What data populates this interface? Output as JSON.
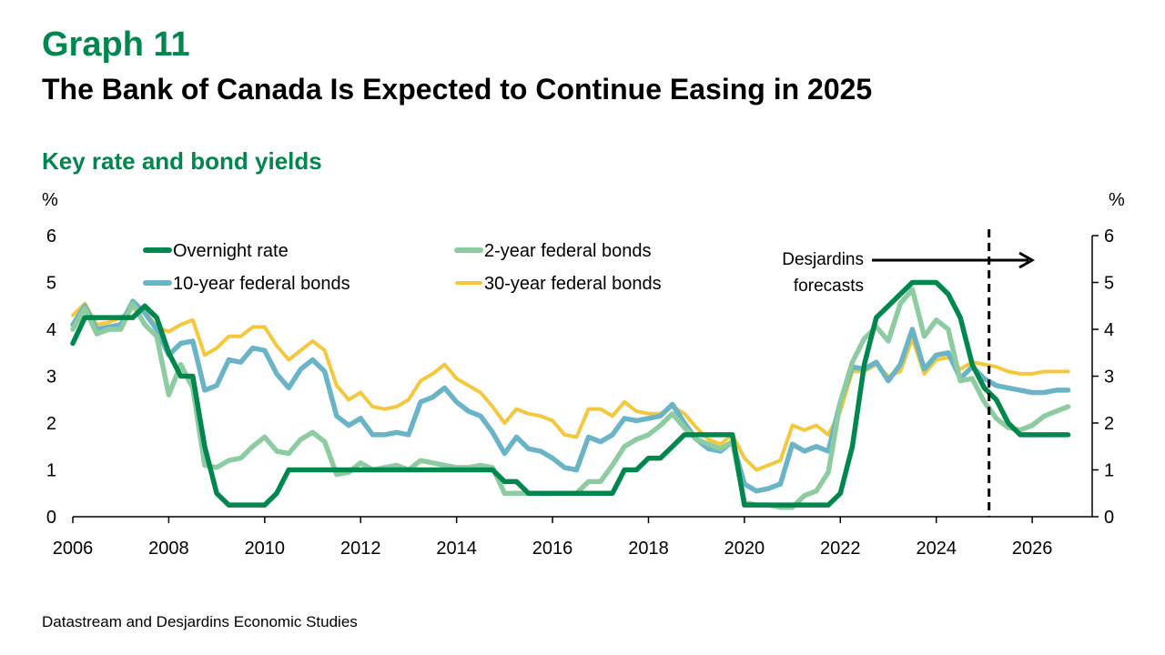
{
  "header": {
    "graph_number": "Graph 11",
    "title": "The Bank of Canada Is Expected to Continue Easing in 2025",
    "subtitle": "Key rate and bond yields"
  },
  "footer": {
    "source": "Datastream and Desjardins Economic Studies"
  },
  "colors": {
    "overnight": "#00874e",
    "two_year": "#8cccA0",
    "ten_year": "#6ab4c8",
    "thirty_year": "#f5c83c"
  },
  "chart_data": {
    "type": "line",
    "y_unit_left": "%",
    "y_unit_right": "%",
    "xlim": [
      2006,
      2027.25
    ],
    "ylim": [
      0,
      6
    ],
    "x_ticks": [
      "2006",
      "2008",
      "2010",
      "2012",
      "2014",
      "2016",
      "2018",
      "2020",
      "2022",
      "2024",
      "2026"
    ],
    "y_ticks": [
      "0",
      "1",
      "2",
      "3",
      "4",
      "5",
      "6"
    ],
    "grid": false,
    "legend": "top-left",
    "forecast_start": 2025.1,
    "annotation": {
      "line1": "Desjardins",
      "line2": "forecasts"
    },
    "series": [
      {
        "name": "Overnight rate",
        "key": "overnight",
        "x": [
          2006.0,
          2006.25,
          2006.5,
          2006.75,
          2007.0,
          2007.25,
          2007.5,
          2007.75,
          2008.0,
          2008.25,
          2008.5,
          2008.75,
          2009.0,
          2009.25,
          2009.5,
          2009.75,
          2010.0,
          2010.25,
          2010.5,
          2010.75,
          2011.0,
          2011.25,
          2011.5,
          2011.75,
          2012.0,
          2012.25,
          2012.5,
          2012.75,
          2013.0,
          2013.25,
          2013.5,
          2013.75,
          2014.0,
          2014.25,
          2014.5,
          2014.75,
          2015.0,
          2015.25,
          2015.5,
          2015.75,
          2016.0,
          2016.25,
          2016.5,
          2016.75,
          2017.0,
          2017.25,
          2017.5,
          2017.75,
          2018.0,
          2018.25,
          2018.5,
          2018.75,
          2019.0,
          2019.25,
          2019.5,
          2019.75,
          2020.0,
          2020.25,
          2020.5,
          2020.75,
          2021.0,
          2021.25,
          2021.5,
          2021.75,
          2022.0,
          2022.25,
          2022.5,
          2022.75,
          2023.0,
          2023.25,
          2023.5,
          2023.75,
          2024.0,
          2024.25,
          2024.5,
          2024.75,
          2025.0,
          2025.25,
          2025.5,
          2025.75,
          2026.0,
          2026.25,
          2026.5,
          2026.75
        ],
        "y": [
          3.7,
          4.25,
          4.25,
          4.25,
          4.25,
          4.25,
          4.5,
          4.25,
          3.5,
          3.0,
          3.0,
          1.5,
          0.5,
          0.25,
          0.25,
          0.25,
          0.25,
          0.5,
          1.0,
          1.0,
          1.0,
          1.0,
          1.0,
          1.0,
          1.0,
          1.0,
          1.0,
          1.0,
          1.0,
          1.0,
          1.0,
          1.0,
          1.0,
          1.0,
          1.0,
          1.0,
          0.75,
          0.75,
          0.5,
          0.5,
          0.5,
          0.5,
          0.5,
          0.5,
          0.5,
          0.5,
          1.0,
          1.0,
          1.25,
          1.25,
          1.5,
          1.75,
          1.75,
          1.75,
          1.75,
          1.75,
          0.25,
          0.25,
          0.25,
          0.25,
          0.25,
          0.25,
          0.25,
          0.25,
          0.5,
          1.5,
          3.25,
          4.25,
          4.5,
          4.75,
          5.0,
          5.0,
          5.0,
          4.75,
          4.25,
          3.25,
          2.75,
          2.5,
          2.0,
          1.75,
          1.75,
          1.75,
          1.75,
          1.75
        ]
      },
      {
        "name": "2-year federal bonds",
        "key": "two_year",
        "x": [
          2006.0,
          2006.25,
          2006.5,
          2006.75,
          2007.0,
          2007.25,
          2007.5,
          2007.75,
          2008.0,
          2008.25,
          2008.5,
          2008.75,
          2009.0,
          2009.25,
          2009.5,
          2009.75,
          2010.0,
          2010.25,
          2010.5,
          2010.75,
          2011.0,
          2011.25,
          2011.5,
          2011.75,
          2012.0,
          2012.25,
          2012.5,
          2012.75,
          2013.0,
          2013.25,
          2013.5,
          2013.75,
          2014.0,
          2014.25,
          2014.5,
          2014.75,
          2015.0,
          2015.25,
          2015.5,
          2015.75,
          2016.0,
          2016.25,
          2016.5,
          2016.75,
          2017.0,
          2017.25,
          2017.5,
          2017.75,
          2018.0,
          2018.25,
          2018.5,
          2018.75,
          2019.0,
          2019.25,
          2019.5,
          2019.75,
          2020.0,
          2020.25,
          2020.5,
          2020.75,
          2021.0,
          2021.25,
          2021.5,
          2021.75,
          2022.0,
          2022.25,
          2022.5,
          2022.75,
          2023.0,
          2023.25,
          2023.5,
          2023.75,
          2024.0,
          2024.25,
          2024.5,
          2024.75,
          2025.0,
          2025.25,
          2025.5,
          2025.75,
          2026.0,
          2026.25,
          2026.5,
          2026.75
        ],
        "y": [
          4.0,
          4.45,
          3.9,
          4.0,
          4.0,
          4.55,
          4.1,
          3.85,
          2.6,
          3.25,
          2.75,
          1.1,
          1.05,
          1.2,
          1.25,
          1.5,
          1.7,
          1.4,
          1.35,
          1.65,
          1.8,
          1.6,
          0.9,
          0.95,
          1.15,
          1.0,
          1.05,
          1.1,
          1.0,
          1.2,
          1.15,
          1.1,
          1.05,
          1.05,
          1.1,
          1.05,
          0.5,
          0.5,
          0.5,
          0.5,
          0.5,
          0.5,
          0.5,
          0.75,
          0.75,
          1.1,
          1.5,
          1.65,
          1.75,
          1.95,
          2.2,
          1.9,
          1.65,
          1.55,
          1.45,
          1.6,
          0.3,
          0.25,
          0.25,
          0.2,
          0.2,
          0.45,
          0.55,
          0.95,
          2.45,
          3.3,
          3.8,
          4.05,
          3.75,
          4.55,
          4.85,
          3.85,
          4.2,
          4.0,
          2.9,
          2.95,
          2.45,
          2.1,
          1.9,
          1.85,
          1.95,
          2.15,
          2.25,
          2.35
        ]
      },
      {
        "name": "10-year federal bonds",
        "key": "ten_year",
        "x": [
          2006.0,
          2006.25,
          2006.5,
          2006.75,
          2007.0,
          2007.25,
          2007.5,
          2007.75,
          2008.0,
          2008.25,
          2008.5,
          2008.75,
          2009.0,
          2009.25,
          2009.5,
          2009.75,
          2010.0,
          2010.25,
          2010.5,
          2010.75,
          2011.0,
          2011.25,
          2011.5,
          2011.75,
          2012.0,
          2012.25,
          2012.5,
          2012.75,
          2013.0,
          2013.25,
          2013.5,
          2013.75,
          2014.0,
          2014.25,
          2014.5,
          2014.75,
          2015.0,
          2015.25,
          2015.5,
          2015.75,
          2016.0,
          2016.25,
          2016.5,
          2016.75,
          2017.0,
          2017.25,
          2017.5,
          2017.75,
          2018.0,
          2018.25,
          2018.5,
          2018.75,
          2019.0,
          2019.25,
          2019.5,
          2019.75,
          2020.0,
          2020.25,
          2020.5,
          2020.75,
          2021.0,
          2021.25,
          2021.5,
          2021.75,
          2022.0,
          2022.25,
          2022.5,
          2022.75,
          2023.0,
          2023.25,
          2023.5,
          2023.75,
          2024.0,
          2024.25,
          2024.5,
          2024.75,
          2025.0,
          2025.25,
          2025.5,
          2025.75,
          2026.0,
          2026.25,
          2026.5,
          2026.75
        ],
        "y": [
          4.1,
          4.5,
          4.0,
          4.05,
          4.1,
          4.6,
          4.35,
          4.0,
          3.45,
          3.7,
          3.75,
          2.7,
          2.8,
          3.35,
          3.3,
          3.6,
          3.55,
          3.05,
          2.75,
          3.15,
          3.35,
          3.1,
          2.15,
          1.95,
          2.1,
          1.75,
          1.75,
          1.8,
          1.75,
          2.45,
          2.55,
          2.75,
          2.45,
          2.25,
          2.15,
          1.8,
          1.35,
          1.7,
          1.45,
          1.4,
          1.25,
          1.05,
          1.0,
          1.7,
          1.6,
          1.75,
          2.1,
          2.05,
          2.1,
          2.15,
          2.4,
          2.0,
          1.65,
          1.45,
          1.4,
          1.6,
          0.7,
          0.55,
          0.6,
          0.7,
          1.55,
          1.4,
          1.5,
          1.4,
          2.45,
          3.2,
          3.15,
          3.3,
          2.9,
          3.25,
          4.0,
          3.15,
          3.45,
          3.5,
          2.95,
          3.2,
          2.95,
          2.8,
          2.75,
          2.7,
          2.65,
          2.65,
          2.7,
          2.7
        ]
      },
      {
        "name": "30-year federal bonds",
        "key": "thirty_year",
        "x": [
          2006.0,
          2006.25,
          2006.5,
          2006.75,
          2007.0,
          2007.25,
          2007.5,
          2007.75,
          2008.0,
          2008.25,
          2008.5,
          2008.75,
          2009.0,
          2009.25,
          2009.5,
          2009.75,
          2010.0,
          2010.25,
          2010.5,
          2010.75,
          2011.0,
          2011.25,
          2011.5,
          2011.75,
          2012.0,
          2012.25,
          2012.5,
          2012.75,
          2013.0,
          2013.25,
          2013.5,
          2013.75,
          2014.0,
          2014.25,
          2014.5,
          2014.75,
          2015.0,
          2015.25,
          2015.5,
          2015.75,
          2016.0,
          2016.25,
          2016.5,
          2016.75,
          2017.0,
          2017.25,
          2017.5,
          2017.75,
          2018.0,
          2018.25,
          2018.5,
          2018.75,
          2019.0,
          2019.25,
          2019.5,
          2019.75,
          2020.0,
          2020.25,
          2020.5,
          2020.75,
          2021.0,
          2021.25,
          2021.5,
          2021.75,
          2022.0,
          2022.25,
          2022.5,
          2022.75,
          2023.0,
          2023.25,
          2023.5,
          2023.75,
          2024.0,
          2024.25,
          2024.5,
          2024.75,
          2025.0,
          2025.25,
          2025.5,
          2025.75,
          2026.0,
          2026.25,
          2026.5,
          2026.75
        ],
        "y": [
          4.3,
          4.55,
          4.1,
          4.15,
          4.25,
          4.45,
          4.4,
          4.05,
          3.95,
          4.1,
          4.2,
          3.45,
          3.6,
          3.85,
          3.85,
          4.05,
          4.05,
          3.65,
          3.35,
          3.55,
          3.75,
          3.55,
          2.8,
          2.5,
          2.65,
          2.35,
          2.3,
          2.35,
          2.5,
          2.9,
          3.05,
          3.25,
          2.95,
          2.8,
          2.65,
          2.35,
          2.0,
          2.3,
          2.2,
          2.15,
          2.05,
          1.75,
          1.7,
          2.3,
          2.3,
          2.15,
          2.45,
          2.25,
          2.2,
          2.2,
          2.35,
          2.2,
          1.9,
          1.65,
          1.55,
          1.75,
          1.25,
          1.0,
          1.1,
          1.2,
          1.95,
          1.85,
          1.95,
          1.75,
          2.25,
          3.1,
          3.1,
          3.25,
          3.0,
          3.1,
          3.8,
          3.05,
          3.35,
          3.4,
          3.15,
          3.3,
          3.25,
          3.2,
          3.1,
          3.05,
          3.05,
          3.1,
          3.1,
          3.1
        ]
      }
    ]
  }
}
